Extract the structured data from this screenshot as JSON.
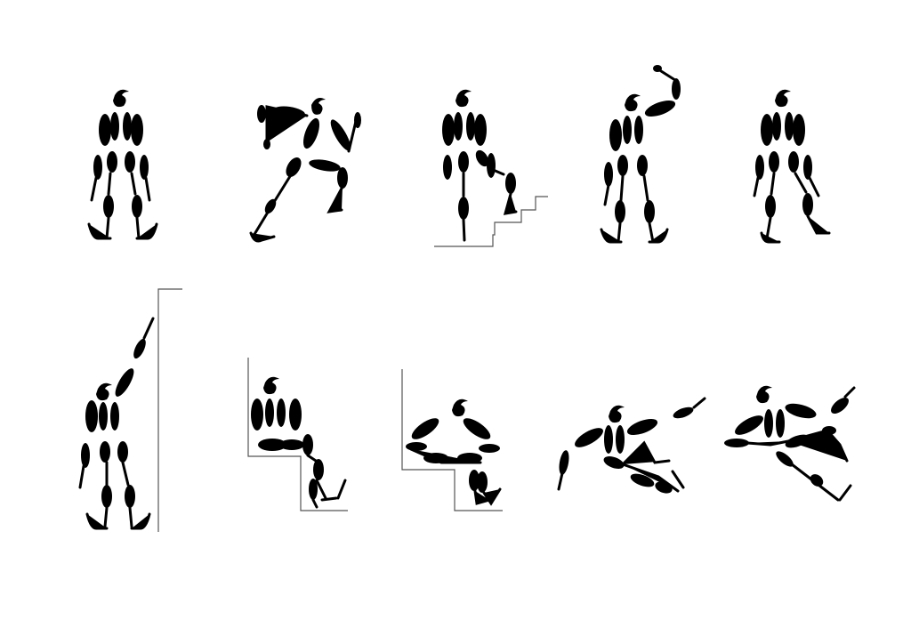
{
  "figure": {
    "title": "",
    "ink_color": "#000000",
    "prop_color": "#555555",
    "background": "#ffffff",
    "poses": [
      {
        "name": "standing",
        "prop": "none"
      },
      {
        "name": "lunge-reach-left",
        "prop": "none"
      },
      {
        "name": "step-up",
        "prop": "stairs"
      },
      {
        "name": "arm-raised-overhead",
        "prop": "none"
      },
      {
        "name": "standing-knee-bend",
        "prop": "none"
      },
      {
        "name": "reach-up-wall",
        "prop": "wall"
      },
      {
        "name": "sit-down-step",
        "prop": "step"
      },
      {
        "name": "seated-hug-knees",
        "prop": "step"
      },
      {
        "name": "side-lunge-reach",
        "prop": "none"
      },
      {
        "name": "crawl-reach",
        "prop": "none"
      }
    ]
  }
}
